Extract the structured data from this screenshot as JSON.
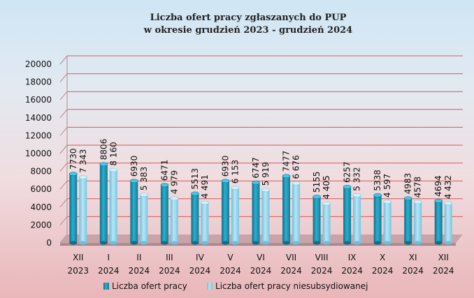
{
  "chart_data": {
    "type": "bar",
    "title": "Liczba ofert pracy zgłaszanych do PUP",
    "subtitle": "w okresie grudzień 2023 - grudzień 2024",
    "categories": [
      {
        "month": "XII",
        "year": "2023"
      },
      {
        "month": "I",
        "year": "2024"
      },
      {
        "month": "II",
        "year": "2024"
      },
      {
        "month": "III",
        "year": "2024"
      },
      {
        "month": "IV",
        "year": "2024"
      },
      {
        "month": "V",
        "year": "2024"
      },
      {
        "month": "VI",
        "year": "2024"
      },
      {
        "month": "VII",
        "year": "2024"
      },
      {
        "month": "VIII",
        "year": "2024"
      },
      {
        "month": "IX",
        "year": "2024"
      },
      {
        "month": "X",
        "year": "2024"
      },
      {
        "month": "XI",
        "year": "2024"
      },
      {
        "month": "XII",
        "year": "2024"
      }
    ],
    "series": [
      {
        "name": "Liczba ofert pracy",
        "color": "#1f9bb8",
        "values": [
          7730,
          8806,
          6930,
          6471,
          5513,
          6930,
          6747,
          7477,
          5155,
          6257,
          5338,
          4983,
          4694
        ],
        "labels": [
          "7730",
          "8806",
          "6930",
          "6471",
          "5513",
          "6930",
          "6747",
          "7477",
          "5155",
          "6257",
          "5338",
          "4983",
          "4694"
        ]
      },
      {
        "name": "Liczba ofert pracy niesubsydiowanej",
        "color": "#8fd3ea",
        "values": [
          7343,
          8160,
          5383,
          4979,
          4491,
          6153,
          5919,
          6676,
          4405,
          5332,
          4597,
          4578,
          4432
        ],
        "labels": [
          "7 343",
          "8 160",
          "5 383",
          "4 979",
          "4 491",
          "6 153",
          "5 919",
          "6 676",
          "4 405",
          "5 332",
          "4 597",
          "4578",
          "4 432"
        ]
      }
    ],
    "yticks": [
      "0",
      "2000",
      "4000",
      "6000",
      "8000",
      "10000",
      "12000",
      "14000",
      "16000",
      "18000",
      "20000"
    ],
    "ylim": [
      0,
      20000
    ],
    "grid": true,
    "legend_position": "bottom"
  }
}
